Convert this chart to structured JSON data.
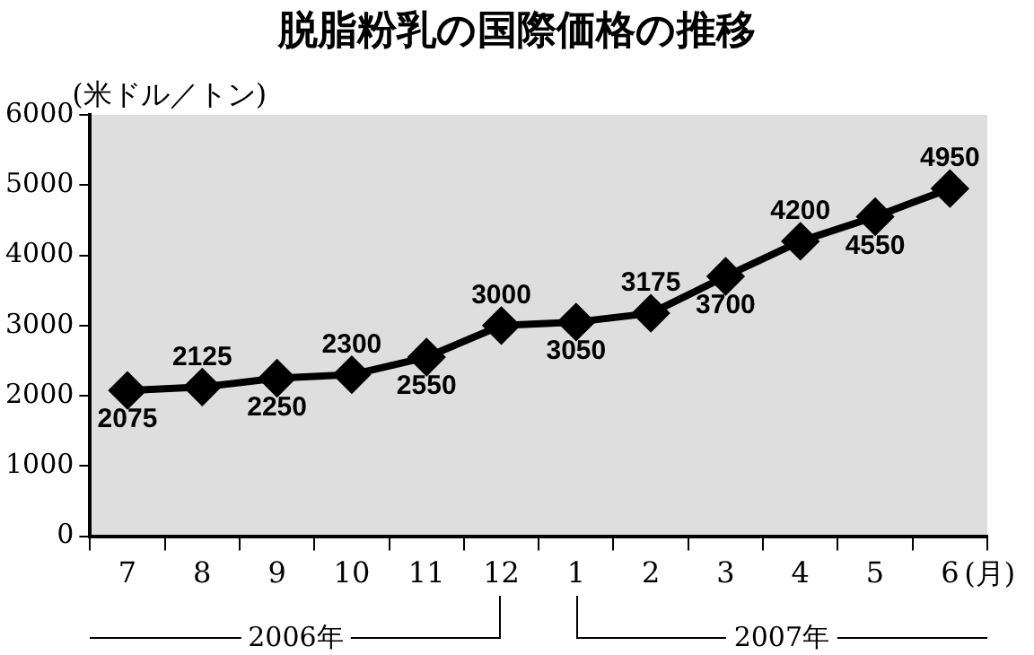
{
  "chart_data": {
    "type": "line",
    "title": "脱脂粉乳の国際価格の推移",
    "ylabel": "(米ドル／トン)",
    "xlabel": "(月)",
    "categories": [
      "7",
      "8",
      "9",
      "10",
      "11",
      "12",
      "1",
      "2",
      "3",
      "4",
      "5",
      "6"
    ],
    "series": [
      {
        "color": "#000000",
        "values": [
          2075,
          2125,
          2250,
          2300,
          2550,
          3000,
          3050,
          3175,
          3700,
          4200,
          4550,
          4950
        ]
      }
    ],
    "ylim": [
      0,
      6000
    ],
    "yticks": [
      0,
      1000,
      2000,
      3000,
      4000,
      5000,
      6000
    ],
    "grid": false,
    "legend": false,
    "marker": "diamond",
    "line_style": "solid",
    "data_labels": true,
    "annotations": [
      "2006年",
      "2007年"
    ]
  }
}
